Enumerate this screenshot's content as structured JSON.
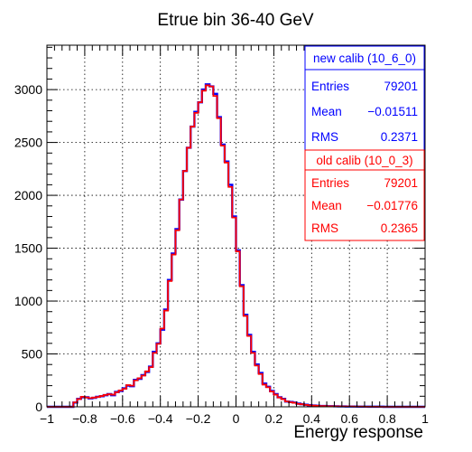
{
  "chart_data": {
    "type": "histogram",
    "title": "Etrue bin 36-40 GeV",
    "xlabel": "Energy response",
    "ylabel": "",
    "xlim": [
      -1,
      1
    ],
    "ylim": [
      0,
      3420
    ],
    "grid": true,
    "bin_width": 0.02,
    "x_ticks": [
      -1,
      -0.8,
      -0.6,
      -0.4,
      -0.2,
      0,
      0.2,
      0.4,
      0.6,
      0.8,
      1
    ],
    "x_tick_labels": [
      "−1",
      "−0.8",
      "−0.6",
      "−0.4",
      "−0.2",
      "0",
      "0.2",
      "0.4",
      "0.6",
      "0.8",
      "1"
    ],
    "y_ticks": [
      0,
      500,
      1000,
      1500,
      2000,
      2500,
      3000
    ],
    "y_tick_labels": [
      "0",
      "500",
      "1000",
      "1500",
      "2000",
      "2500",
      "3000"
    ],
    "series": [
      {
        "name": "new calib (10_6_0)",
        "color": "#0000ff",
        "values": [
          0,
          0,
          0,
          0,
          0,
          0,
          0,
          40,
          75,
          90,
          90,
          80,
          85,
          95,
          100,
          110,
          120,
          110,
          140,
          150,
          175,
          200,
          195,
          255,
          265,
          300,
          330,
          380,
          520,
          600,
          730,
          920,
          1200,
          1450,
          1680,
          1960,
          2230,
          2450,
          2650,
          2790,
          2880,
          3000,
          3050,
          3030,
          2960,
          2740,
          2480,
          2320,
          2100,
          1800,
          1480,
          1150,
          870,
          680,
          520,
          400,
          320,
          220,
          190,
          150,
          120,
          90,
          75,
          50,
          45,
          40,
          30,
          25,
          20,
          15,
          12,
          10,
          8,
          8,
          6,
          6,
          5,
          4,
          4,
          3,
          3,
          3,
          2,
          2,
          2,
          1,
          1,
          1,
          1,
          0,
          0,
          0,
          0,
          0,
          0,
          0,
          0,
          0,
          0,
          0
        ]
      },
      {
        "name": "old calib (10_0_3)",
        "color": "#ff0000",
        "values": [
          0,
          0,
          0,
          0,
          0,
          0,
          0,
          42,
          73,
          95,
          88,
          82,
          87,
          93,
          102,
          112,
          118,
          115,
          138,
          155,
          170,
          205,
          200,
          250,
          270,
          295,
          335,
          375,
          510,
          595,
          740,
          910,
          1190,
          1440,
          1670,
          1960,
          2230,
          2450,
          2650,
          2780,
          2880,
          2990,
          3040,
          3030,
          2940,
          2730,
          2470,
          2310,
          2080,
          1790,
          1470,
          1140,
          860,
          670,
          510,
          390,
          310,
          210,
          185,
          145,
          115,
          88,
          72,
          50,
          43,
          38,
          28,
          24,
          18,
          14,
          11,
          9,
          7,
          7,
          5,
          5,
          4,
          4,
          3,
          3,
          3,
          2,
          2,
          2,
          1,
          1,
          1,
          1,
          0,
          0,
          0,
          0,
          0,
          0,
          0,
          0,
          0,
          0,
          0,
          0
        ]
      }
    ],
    "stats_boxes": [
      {
        "title": "new calib (10_6_0)",
        "color": "#0000ff",
        "entries_label": "Entries",
        "entries": "79201",
        "mean_label": "Mean",
        "mean": "−0.01511",
        "rms_label": "RMS",
        "rms": "0.2371"
      },
      {
        "title": "old calib (10_0_3)",
        "color": "#ff0000",
        "entries_label": "Entries",
        "entries": "79201",
        "mean_label": "Mean",
        "mean": "−0.01776",
        "rms_label": "RMS",
        "rms": "0.2365"
      }
    ]
  }
}
